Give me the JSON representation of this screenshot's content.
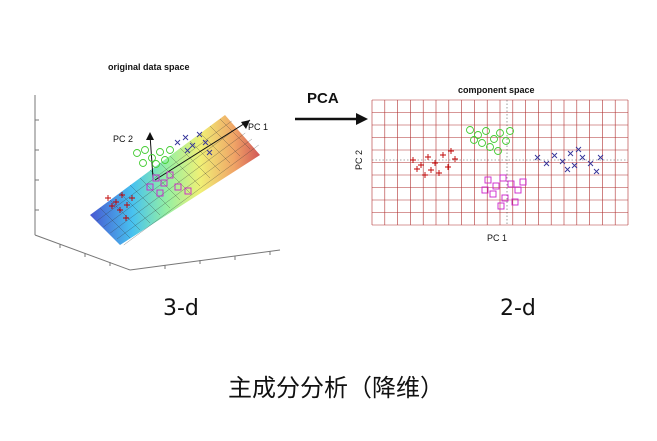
{
  "left_panel": {
    "title": "original data space",
    "axis_pc1": "PC 1",
    "axis_pc2": "PC 2",
    "dimension_label": "3-d"
  },
  "arrow": {
    "label": "PCA"
  },
  "right_panel": {
    "title": "component space",
    "xlabel": "PC 1",
    "ylabel": "PC 2",
    "dimension_label": "2-d"
  },
  "caption": "主成分分析（降维）",
  "colors": {
    "red_cluster": "#c00000",
    "green_cluster": "#44cc33",
    "magenta_cluster": "#cc22cc",
    "blue_cluster": "#333399",
    "grid": "#b03030"
  }
}
